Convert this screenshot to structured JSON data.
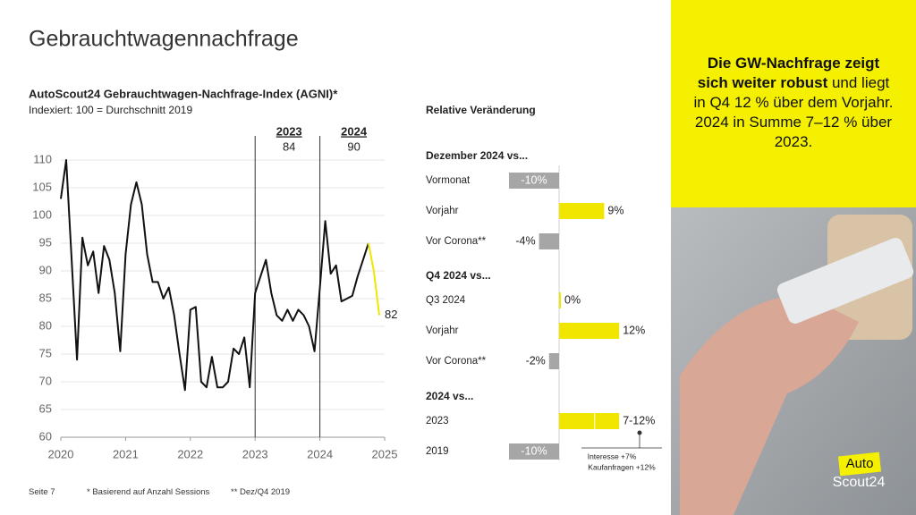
{
  "slide": {
    "title": "Gebrauchtwagennachfrage",
    "callout": {
      "bold": "Die GW-Nachfrage zeigt sich weiter robust",
      "text": "und liegt in Q4 12 % über dem Vorjahr. 2024 in Summe 7–12 % über 2023."
    },
    "footer": [
      "Seite 7",
      "* Basierend auf Anzahl Sessions",
      "** Dez/Q4 2019"
    ],
    "logo": [
      "Auto",
      "Scout24"
    ]
  },
  "chart_data": [
    {
      "type": "line",
      "title": "AutoScout24 Gebrauchtwagen-Nachfrage-Index (AGNI)*",
      "subtitle": "Indexiert: 100 = Durchschnitt 2019",
      "x": [
        2020,
        2020.083,
        2020.167,
        2020.25,
        2020.333,
        2020.417,
        2020.5,
        2020.583,
        2020.667,
        2020.75,
        2020.833,
        2020.917,
        2021,
        2021.083,
        2021.167,
        2021.25,
        2021.333,
        2021.417,
        2021.5,
        2021.583,
        2021.667,
        2021.75,
        2021.833,
        2021.917,
        2022,
        2022.083,
        2022.167,
        2022.25,
        2022.333,
        2022.417,
        2022.5,
        2022.583,
        2022.667,
        2022.75,
        2022.833,
        2022.917,
        2023,
        2023.083,
        2023.167,
        2023.25,
        2023.333,
        2023.417,
        2023.5,
        2023.583,
        2023.667,
        2023.75,
        2023.833,
        2023.917,
        2024,
        2024.083,
        2024.167,
        2024.25,
        2024.333,
        2024.417,
        2024.5,
        2024.583,
        2024.667,
        2024.75,
        2024.833,
        2024.917
      ],
      "xlim": [
        2020,
        2025
      ],
      "xticks": [
        2020,
        2021,
        2022,
        2023,
        2024,
        2025
      ],
      "ylim": [
        60,
        110
      ],
      "yticks": [
        60,
        65,
        70,
        75,
        80,
        85,
        90,
        95,
        100,
        105,
        110
      ],
      "grid": true,
      "series": [
        {
          "color": "#111111",
          "values": [
            103,
            110,
            92,
            74,
            96,
            91,
            93.5,
            86,
            94.5,
            92,
            86,
            75.5,
            93,
            102,
            106,
            102,
            93,
            88,
            88,
            85,
            87,
            82,
            75,
            68.5,
            83,
            83.5,
            70,
            69,
            74.5,
            69,
            69,
            70,
            76,
            75,
            78,
            69,
            86,
            89,
            92,
            86,
            82,
            81,
            83,
            81,
            83,
            82,
            80,
            75.5,
            87,
            99,
            89.5,
            91,
            84.5,
            85,
            85.5,
            89,
            92,
            95,
            null,
            null
          ]
        },
        {
          "color": "#f0e600",
          "values": [
            null,
            null,
            null,
            null,
            null,
            null,
            null,
            null,
            null,
            null,
            null,
            null,
            null,
            null,
            null,
            null,
            null,
            null,
            null,
            null,
            null,
            null,
            null,
            null,
            null,
            null,
            null,
            null,
            null,
            null,
            null,
            null,
            null,
            null,
            null,
            null,
            null,
            null,
            null,
            null,
            null,
            null,
            null,
            null,
            null,
            null,
            null,
            null,
            null,
            null,
            null,
            null,
            null,
            null,
            null,
            null,
            null,
            95,
            90,
            82
          ]
        }
      ],
      "annotations": [
        {
          "x": 2023,
          "value": 84
        },
        {
          "x": 2024,
          "value": 90
        }
      ]
    },
    {
      "type": "bar",
      "orientation": "horizontal",
      "title": "Relative Veränderung",
      "colors": {
        "positive": "#f0e600",
        "negative": "#a6a6a6"
      },
      "groups": [
        {
          "title": "Dezember 2024 vs...",
          "categories": [
            "Vormonat",
            "Vorjahr",
            "Vor Corona**"
          ],
          "values": [
            -10,
            9,
            -4
          ],
          "value_labels": [
            "-10%",
            "9%",
            "-4%"
          ]
        },
        {
          "title": "Q4 2024 vs...",
          "categories": [
            "Q3 2024",
            "Vorjahr",
            "Vor Corona**"
          ],
          "values": [
            0,
            12,
            -2
          ],
          "value_labels": [
            "0%",
            "12%",
            "-2%"
          ]
        },
        {
          "title": "2024 vs...",
          "categories": [
            "2023",
            "2019"
          ],
          "values": [
            [
              7,
              12
            ],
            -10
          ],
          "value_labels": [
            "7-12%",
            "-10%"
          ]
        }
      ],
      "note": [
        "Interesse +7%",
        "Kaufanfragen +12%"
      ]
    }
  ]
}
